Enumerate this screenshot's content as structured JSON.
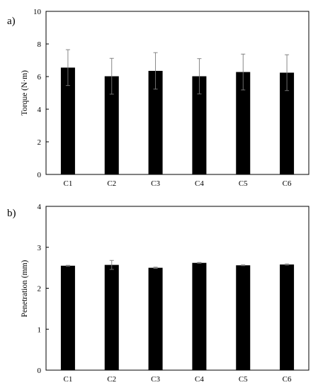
{
  "chart_data": [
    {
      "type": "bar",
      "panel_label": "a)",
      "categories": [
        "C1",
        "C2",
        "C3",
        "C4",
        "C5",
        "C6"
      ],
      "values": [
        6.55,
        6.02,
        6.35,
        6.02,
        6.28,
        6.24
      ],
      "errors": [
        1.1,
        1.1,
        1.12,
        1.08,
        1.1,
        1.1
      ],
      "ylabel": "Torque (N·m)",
      "ylim": [
        0,
        10
      ],
      "yticks": [
        0,
        2,
        4,
        6,
        8,
        10
      ],
      "bar_color": "#000000",
      "error_color": "#7a7a7a",
      "grid": false
    },
    {
      "type": "bar",
      "panel_label": "b)",
      "categories": [
        "C1",
        "C2",
        "C3",
        "C4",
        "C5",
        "C6"
      ],
      "values": [
        2.55,
        2.57,
        2.5,
        2.62,
        2.56,
        2.58
      ],
      "errors": [
        0.01,
        0.11,
        0.015,
        0.01,
        0.01,
        0.015
      ],
      "ylabel": "Penetration (mm)",
      "ylim": [
        0,
        4
      ],
      "yticks": [
        0,
        1,
        2,
        3,
        4
      ],
      "bar_color": "#000000",
      "error_color": "#7a7a7a",
      "grid": false
    }
  ]
}
